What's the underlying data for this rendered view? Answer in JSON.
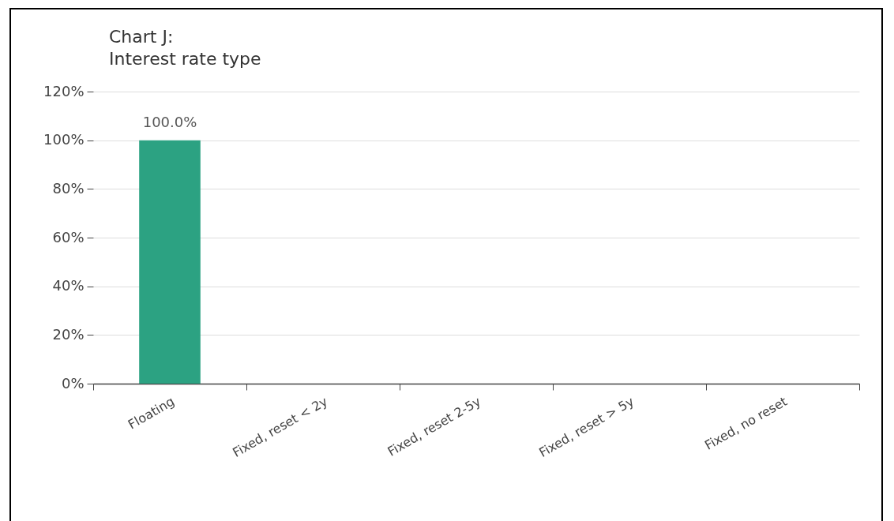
{
  "chart_data": {
    "type": "bar",
    "title": "Chart J:",
    "subtitle": "Interest rate type",
    "categories": [
      "Floating",
      "Fixed, reset < 2y",
      "Fixed, reset 2-5y",
      "Fixed, reset > 5y",
      "Fixed, no reset"
    ],
    "values": [
      100,
      0,
      0,
      0,
      0
    ],
    "color": "#2ca282",
    "value_labels": [
      "100.0%",
      null,
      null,
      null,
      null
    ],
    "ylim": [
      0,
      120
    ],
    "yticks": [
      {
        "value": 0,
        "label": "0%"
      },
      {
        "value": 20,
        "label": "20%"
      },
      {
        "value": 40,
        "label": "40%"
      },
      {
        "value": 60,
        "label": "60%"
      },
      {
        "value": 80,
        "label": "80%"
      },
      {
        "value": 100,
        "label": "100%"
      },
      {
        "value": 120,
        "label": "120%"
      }
    ],
    "grid": "y"
  }
}
